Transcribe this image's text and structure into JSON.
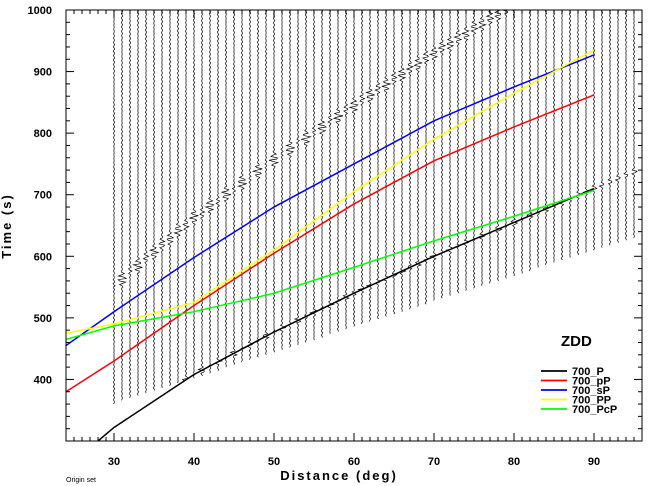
{
  "chart_data": {
    "type": "line",
    "title": "",
    "station_label": "ZDD",
    "xlabel": "Distance (deg)",
    "ylabel": "Time (s)",
    "xlim": [
      24,
      96
    ],
    "ylim": [
      300,
      1000
    ],
    "x_ticks": [
      30,
      40,
      50,
      60,
      70,
      80,
      90
    ],
    "y_ticks": [
      400,
      500,
      600,
      700,
      800,
      900,
      1000
    ],
    "footnote": "Origin set",
    "legend_position": "bottom-right",
    "series": [
      {
        "name": "700_P",
        "color": "#000000",
        "x": [
          28,
          30,
          40,
          50,
          60,
          70,
          80,
          90
        ],
        "y": [
          300,
          322,
          408,
          477,
          540,
          600,
          655,
          710
        ]
      },
      {
        "name": "700_pP",
        "color": "#ff0000",
        "x": [
          24,
          30,
          40,
          50,
          60,
          70,
          80,
          90
        ],
        "y": [
          380,
          430,
          520,
          605,
          685,
          755,
          810,
          862
        ]
      },
      {
        "name": "700_sP",
        "color": "#0000ff",
        "x": [
          24,
          30,
          40,
          50,
          60,
          70,
          80,
          90
        ],
        "y": [
          455,
          510,
          598,
          680,
          750,
          820,
          875,
          927
        ]
      },
      {
        "name": "700_PP",
        "color": "#ffff00",
        "x": [
          24,
          30,
          40,
          50,
          60,
          70,
          80,
          90
        ],
        "y": [
          475,
          490,
          525,
          610,
          705,
          790,
          865,
          935
        ]
      },
      {
        "name": "700_PcP",
        "color": "#00ff00",
        "x": [
          24,
          30,
          40,
          50,
          60,
          70,
          80,
          90
        ],
        "y": [
          465,
          487,
          510,
          540,
          582,
          625,
          665,
          707
        ]
      }
    ],
    "traces": {
      "distance_start": 30,
      "distance_end": 95,
      "distance_step": 1,
      "seismogram_start_time": 1000,
      "seismogram_end_time_30deg": 360,
      "seismogram_end_time_95deg": 630
    }
  }
}
